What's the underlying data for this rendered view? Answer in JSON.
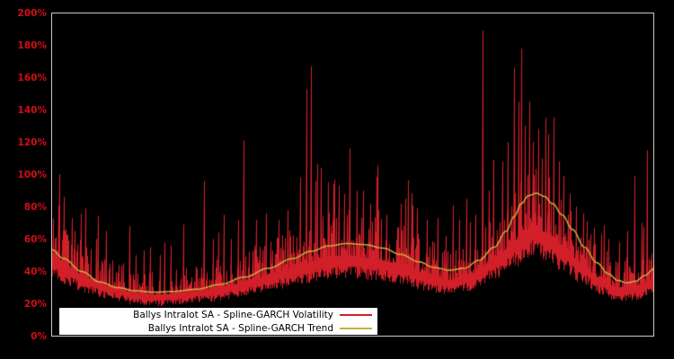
{
  "chart_data": {
    "type": "line",
    "ylim": [
      0,
      200
    ],
    "y_tick_values": [
      0,
      20,
      40,
      60,
      80,
      100,
      120,
      140,
      160,
      180,
      200
    ],
    "y_ticks": [
      "0%",
      "20%",
      "40%",
      "60%",
      "80%",
      "100%",
      "120%",
      "140%",
      "160%",
      "180%",
      "200%"
    ],
    "grid": false,
    "x_ticks": [],
    "axis": {
      "tick_label_color": "#d40d18",
      "border_color": "#c8c8c8",
      "plot_background": "#000000"
    },
    "legend": {
      "position": "bottom-left",
      "background": "#ffffff",
      "text_color": "#000000",
      "items": [
        {
          "label": "Ballys Intralot SA - Spline-GARCH Volatility",
          "color": "#d2202a"
        },
        {
          "label": "Ballys Intralot SA - Spline-GARCH Trend",
          "color": "#c9ae3f"
        }
      ]
    },
    "series": [
      {
        "id": "spline-garch-volatility",
        "color": "#d2202a",
        "style": "noisy-spiky",
        "noise_seed": 13,
        "envelope": [
          [
            0.0,
            50
          ],
          [
            0.03,
            41
          ],
          [
            0.06,
            35
          ],
          [
            0.1,
            30
          ],
          [
            0.14,
            26
          ],
          [
            0.18,
            25
          ],
          [
            0.22,
            26.5
          ],
          [
            0.26,
            28.5
          ],
          [
            0.3,
            31
          ],
          [
            0.34,
            35
          ],
          [
            0.38,
            39.5
          ],
          [
            0.42,
            44
          ],
          [
            0.46,
            48
          ],
          [
            0.5,
            48.5
          ],
          [
            0.54,
            46
          ],
          [
            0.58,
            44
          ],
          [
            0.62,
            38
          ],
          [
            0.66,
            34
          ],
          [
            0.7,
            38
          ],
          [
            0.74,
            48
          ],
          [
            0.77,
            58
          ],
          [
            0.8,
            66
          ],
          [
            0.82,
            63
          ],
          [
            0.85,
            54
          ],
          [
            0.88,
            44
          ],
          [
            0.91,
            35
          ],
          [
            0.94,
            29
          ],
          [
            0.97,
            30
          ],
          [
            1.0,
            34
          ]
        ],
        "spikes": [
          [
            0.012,
            81
          ],
          [
            0.022,
            65
          ],
          [
            0.034,
            73
          ],
          [
            0.057,
            79
          ],
          [
            0.075,
            60
          ],
          [
            0.091,
            65
          ],
          [
            0.13,
            68
          ],
          [
            0.141,
            50
          ],
          [
            0.153,
            53
          ],
          [
            0.164,
            55
          ],
          [
            0.18,
            50
          ],
          [
            0.198,
            56
          ],
          [
            0.219,
            69
          ],
          [
            0.253,
            96
          ],
          [
            0.268,
            60
          ],
          [
            0.278,
            64
          ],
          [
            0.287,
            75
          ],
          [
            0.299,
            60
          ],
          [
            0.31,
            72
          ],
          [
            0.32,
            121
          ],
          [
            0.34,
            72
          ],
          [
            0.357,
            76
          ],
          [
            0.377,
            72
          ],
          [
            0.392,
            78
          ],
          [
            0.414,
            98
          ],
          [
            0.424,
            153
          ],
          [
            0.432,
            167
          ],
          [
            0.439,
            96
          ],
          [
            0.448,
            104
          ],
          [
            0.459,
            95
          ],
          [
            0.477,
            93
          ],
          [
            0.487,
            88
          ],
          [
            0.496,
            116
          ],
          [
            0.508,
            90
          ],
          [
            0.518,
            90
          ],
          [
            0.53,
            82
          ],
          [
            0.544,
            78
          ],
          [
            0.556,
            75
          ],
          [
            0.581,
            82
          ],
          [
            0.588,
            85
          ],
          [
            0.6,
            81
          ],
          [
            0.608,
            79
          ],
          [
            0.624,
            72
          ],
          [
            0.642,
            73
          ],
          [
            0.655,
            62
          ],
          [
            0.667,
            81
          ],
          [
            0.678,
            72
          ],
          [
            0.69,
            85
          ],
          [
            0.704,
            75
          ],
          [
            0.716,
            189
          ],
          [
            0.727,
            90
          ],
          [
            0.734,
            109
          ],
          [
            0.749,
            108
          ],
          [
            0.758,
            120
          ],
          [
            0.768,
            166
          ],
          [
            0.776,
            145
          ],
          [
            0.78,
            178
          ],
          [
            0.786,
            130
          ],
          [
            0.794,
            145
          ],
          [
            0.8,
            120
          ],
          [
            0.809,
            128
          ],
          [
            0.815,
            110
          ],
          [
            0.821,
            135
          ],
          [
            0.826,
            125
          ],
          [
            0.835,
            118
          ],
          [
            0.843,
            108
          ],
          [
            0.85,
            99
          ],
          [
            0.861,
            88
          ],
          [
            0.871,
            80
          ],
          [
            0.883,
            76
          ],
          [
            0.89,
            71
          ],
          [
            0.902,
            67
          ],
          [
            0.913,
            63
          ],
          [
            0.925,
            60
          ],
          [
            0.943,
            58
          ],
          [
            0.957,
            65
          ],
          [
            0.968,
            99
          ],
          [
            0.98,
            70
          ],
          [
            0.99,
            115
          ]
        ]
      },
      {
        "id": "spline-garch-trend",
        "color": "#c9ae3f",
        "style": "smooth",
        "points": [
          [
            0.0,
            53.5
          ],
          [
            0.02,
            48.0
          ],
          [
            0.05,
            40.0
          ],
          [
            0.08,
            33.5
          ],
          [
            0.11,
            30.0
          ],
          [
            0.14,
            28.0
          ],
          [
            0.17,
            27.2
          ],
          [
            0.2,
            27.6
          ],
          [
            0.24,
            29.0
          ],
          [
            0.28,
            32.0
          ],
          [
            0.32,
            36.5
          ],
          [
            0.36,
            42.0
          ],
          [
            0.4,
            48.0
          ],
          [
            0.43,
            52.5
          ],
          [
            0.46,
            55.8
          ],
          [
            0.49,
            57.3
          ],
          [
            0.52,
            56.6
          ],
          [
            0.55,
            54.5
          ],
          [
            0.58,
            50.5
          ],
          [
            0.61,
            46.0
          ],
          [
            0.635,
            42.5
          ],
          [
            0.66,
            40.8
          ],
          [
            0.685,
            42.0
          ],
          [
            0.71,
            47.0
          ],
          [
            0.735,
            55.0
          ],
          [
            0.755,
            65.0
          ],
          [
            0.768,
            74.0
          ],
          [
            0.78,
            82.0
          ],
          [
            0.792,
            87.0
          ],
          [
            0.805,
            88.5
          ],
          [
            0.818,
            86.5
          ],
          [
            0.832,
            82.0
          ],
          [
            0.848,
            75.0
          ],
          [
            0.865,
            66.0
          ],
          [
            0.885,
            55.0
          ],
          [
            0.905,
            45.5
          ],
          [
            0.925,
            38.5
          ],
          [
            0.94,
            34.5
          ],
          [
            0.955,
            33.0
          ],
          [
            0.97,
            34.0
          ],
          [
            0.985,
            37.5
          ],
          [
            1.0,
            41.5
          ]
        ]
      }
    ]
  }
}
